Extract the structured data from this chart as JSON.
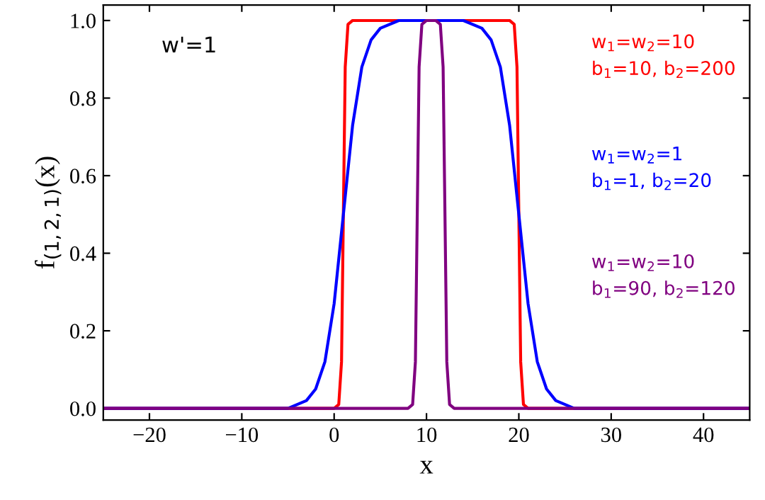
{
  "chart_data": {
    "type": "line",
    "xlabel": "x",
    "ylabel": "f$_{(1,2,1)}$(x)",
    "annotations": [
      {
        "text": "w'=1"
      }
    ],
    "xlim": [
      -25,
      45
    ],
    "xticks": [
      {
        "value": -20,
        "label": "−20"
      },
      {
        "value": -10,
        "label": "−10"
      },
      0,
      10,
      20,
      30,
      40
    ],
    "ylim": [
      -0.03,
      1.04
    ],
    "yticks": [
      {
        "value": 0,
        "label": "0.0"
      },
      0.2,
      0.4,
      0.6,
      0.8,
      {
        "value": 1,
        "label": "1.0"
      }
    ],
    "grid": false,
    "marker": "none",
    "line_style": "solid",
    "series": [
      {
        "name": "w$_{1}$=w$_{2}$=10\nb$_{1}$=10, b$_{2}$=200",
        "color": "#ff0000",
        "x": [
          -25,
          0,
          0.5,
          0.8,
          1,
          1.2,
          1.5,
          2,
          19,
          19.5,
          19.8,
          20,
          20.2,
          20.5,
          21,
          45
        ],
        "values": [
          0,
          0,
          0.01,
          0.12,
          0.5,
          0.88,
          0.99,
          1,
          1,
          0.99,
          0.88,
          0.5,
          0.12,
          0.01,
          0,
          0
        ]
      },
      {
        "name": "w$_{1}$=w$_{2}$=1\nb$_{1}$=1, b$_{2}$=20",
        "color": "#0000ff",
        "x": [
          -25,
          -10,
          -5,
          -3,
          -2,
          -1,
          0,
          1,
          2,
          3,
          4,
          5,
          7,
          10,
          14,
          16,
          17,
          18,
          19,
          20,
          21,
          22,
          23,
          24,
          26,
          30,
          45
        ],
        "values": [
          0,
          0,
          0.0,
          0.02,
          0.05,
          0.12,
          0.27,
          0.5,
          0.73,
          0.88,
          0.95,
          0.98,
          1,
          1,
          1,
          0.98,
          0.95,
          0.88,
          0.73,
          0.5,
          0.27,
          0.12,
          0.05,
          0.02,
          0.0,
          0,
          0
        ]
      },
      {
        "name": "w$_{1}$=w$_{2}$=10\nb$_{1}$=90, b$_{2}$=120",
        "color": "#800080",
        "x": [
          -25,
          8,
          8.5,
          8.8,
          9,
          9.2,
          9.5,
          10,
          11,
          11.5,
          11.8,
          12,
          12.2,
          12.5,
          13,
          45
        ],
        "values": [
          0,
          0,
          0.01,
          0.12,
          0.5,
          0.88,
          0.99,
          1,
          1,
          0.99,
          0.88,
          0.5,
          0.12,
          0.01,
          0,
          0
        ]
      }
    ]
  }
}
